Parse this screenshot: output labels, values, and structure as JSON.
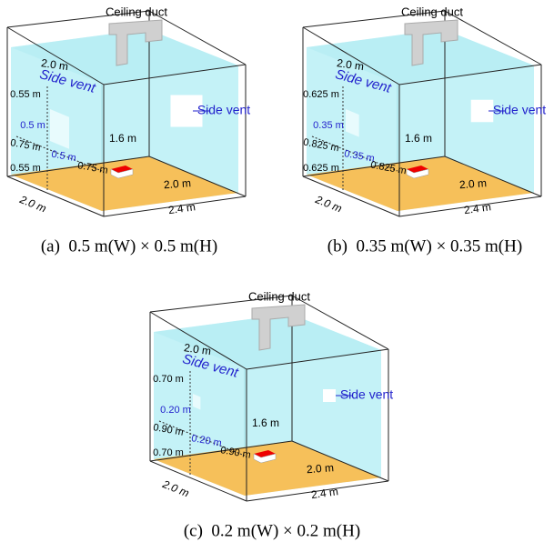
{
  "panels": [
    {
      "caption": "(a)  0.5 m(W) × 0.5 m(H)",
      "labels": {
        "ceiling_duct": "Ceiling duct",
        "top_width": "2.0 m",
        "side_vent_left": "Side vent",
        "side_vent_right": "Side vent",
        "upper_gap": "0.55 m",
        "vent_height": "0.5 m",
        "left_gap": "0.75 m",
        "vent_width": "0.5 m",
        "right_gap": "0.75 m",
        "lower_gap": "0.55 m",
        "room_height": "1.6 m",
        "floor_width": "2.0 m",
        "depth": "2.0 m",
        "length": "2.4 m"
      }
    },
    {
      "caption": "(b)  0.35 m(W) × 0.35 m(H)",
      "labels": {
        "ceiling_duct": "Ceiling duct",
        "top_width": "2.0 m",
        "side_vent_left": "Side vent",
        "side_vent_right": "Side vent",
        "upper_gap": "0.625 m",
        "vent_height": "0.35 m",
        "left_gap": "0.825 m",
        "vent_width": "0.35 m",
        "right_gap": "0.825 m",
        "lower_gap": "0.625 m",
        "room_height": "1.6 m",
        "floor_width": "2.0 m",
        "depth": "2.0 m",
        "length": "2.4 m"
      }
    },
    {
      "caption": "(c)  0.2 m(W) × 0.2 m(H)",
      "labels": {
        "ceiling_duct": "Ceiling duct",
        "top_width": "2.0 m",
        "side_vent_left": "Side vent",
        "side_vent_right": "Side vent",
        "upper_gap": "0.70 m",
        "vent_height": "0.20 m",
        "left_gap": "0.90 m",
        "vent_width": "0.20 m",
        "right_gap": "0.90 m",
        "lower_gap": "0.70 m",
        "room_height": "1.6 m",
        "floor_width": "2.0 m",
        "depth": "2.0 m",
        "length": "2.4 m"
      }
    }
  ]
}
